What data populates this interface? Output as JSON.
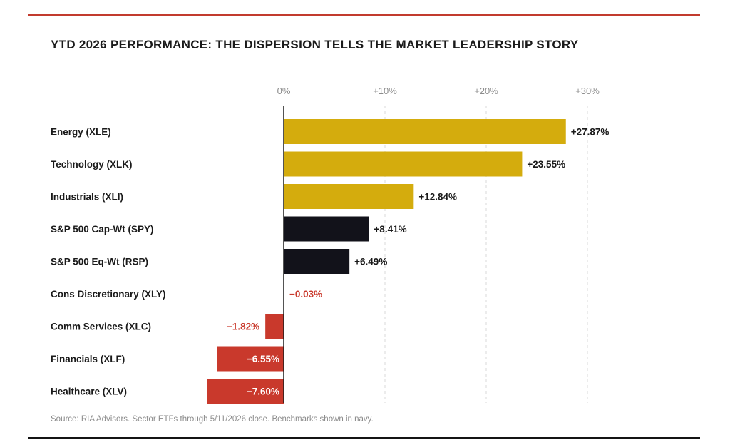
{
  "title": "YTD 2026 PERFORMANCE: THE DISPERSION TELLS THE MARKET LEADERSHIP STORY",
  "source": "Source: RIA Advisors. Sector ETFs through 5/11/2026 close. Benchmarks shown in navy.",
  "colors": {
    "rule_top": "#c23b2e",
    "rule_bottom": "#141414",
    "sector_positive": "#d4ac0d",
    "benchmark": "#12121a",
    "negative": "#c9392c",
    "negative_text": "#c9392c",
    "text": "#1a1a1a"
  },
  "chart_data": {
    "type": "bar",
    "orientation": "horizontal",
    "xlim": [
      -8,
      30
    ],
    "xticks": [
      {
        "value": 0,
        "label": "0%"
      },
      {
        "value": 10,
        "label": "+10%"
      },
      {
        "value": 20,
        "label": "+20%"
      },
      {
        "value": 30,
        "label": "+30%"
      }
    ],
    "grid": "vertical dashed",
    "categories": [
      "Energy (XLE)",
      "Technology (XLK)",
      "Industrials (XLI)",
      "S&P 500 Cap-Wt (SPY)",
      "S&P 500 Eq-Wt (RSP)",
      "Cons Discretionary (XLY)",
      "Comm Services (XLC)",
      "Financials (XLF)",
      "Healthcare (XLV)"
    ],
    "values": [
      27.87,
      23.55,
      12.84,
      8.41,
      6.49,
      -0.03,
      -1.82,
      -6.55,
      -7.6
    ],
    "value_labels": [
      "+27.87%",
      "+23.55%",
      "+12.84%",
      "+8.41%",
      "+6.49%",
      "−0.03%",
      "−1.82%",
      "−6.55%",
      "−7.60%"
    ],
    "groups": [
      "sector",
      "sector",
      "sector",
      "benchmark",
      "benchmark",
      "sector",
      "sector",
      "sector",
      "sector"
    ]
  }
}
